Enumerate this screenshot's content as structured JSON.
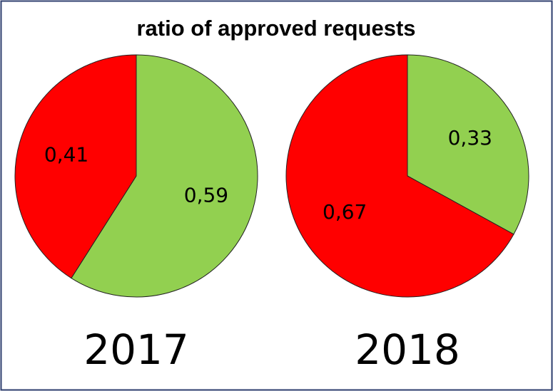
{
  "title": "ratio of approved requests",
  "chart_data": [
    {
      "type": "pie",
      "title": "2017",
      "values": [
        0.59,
        0.41
      ],
      "value_labels": [
        "0,59",
        "0,41"
      ],
      "colors": [
        "#92d050",
        "#ff0000"
      ]
    },
    {
      "type": "pie",
      "title": "2018",
      "values": [
        0.33,
        0.67
      ],
      "value_labels": [
        "0,33",
        "0,67"
      ],
      "colors": [
        "#92d050",
        "#ff0000"
      ]
    }
  ]
}
